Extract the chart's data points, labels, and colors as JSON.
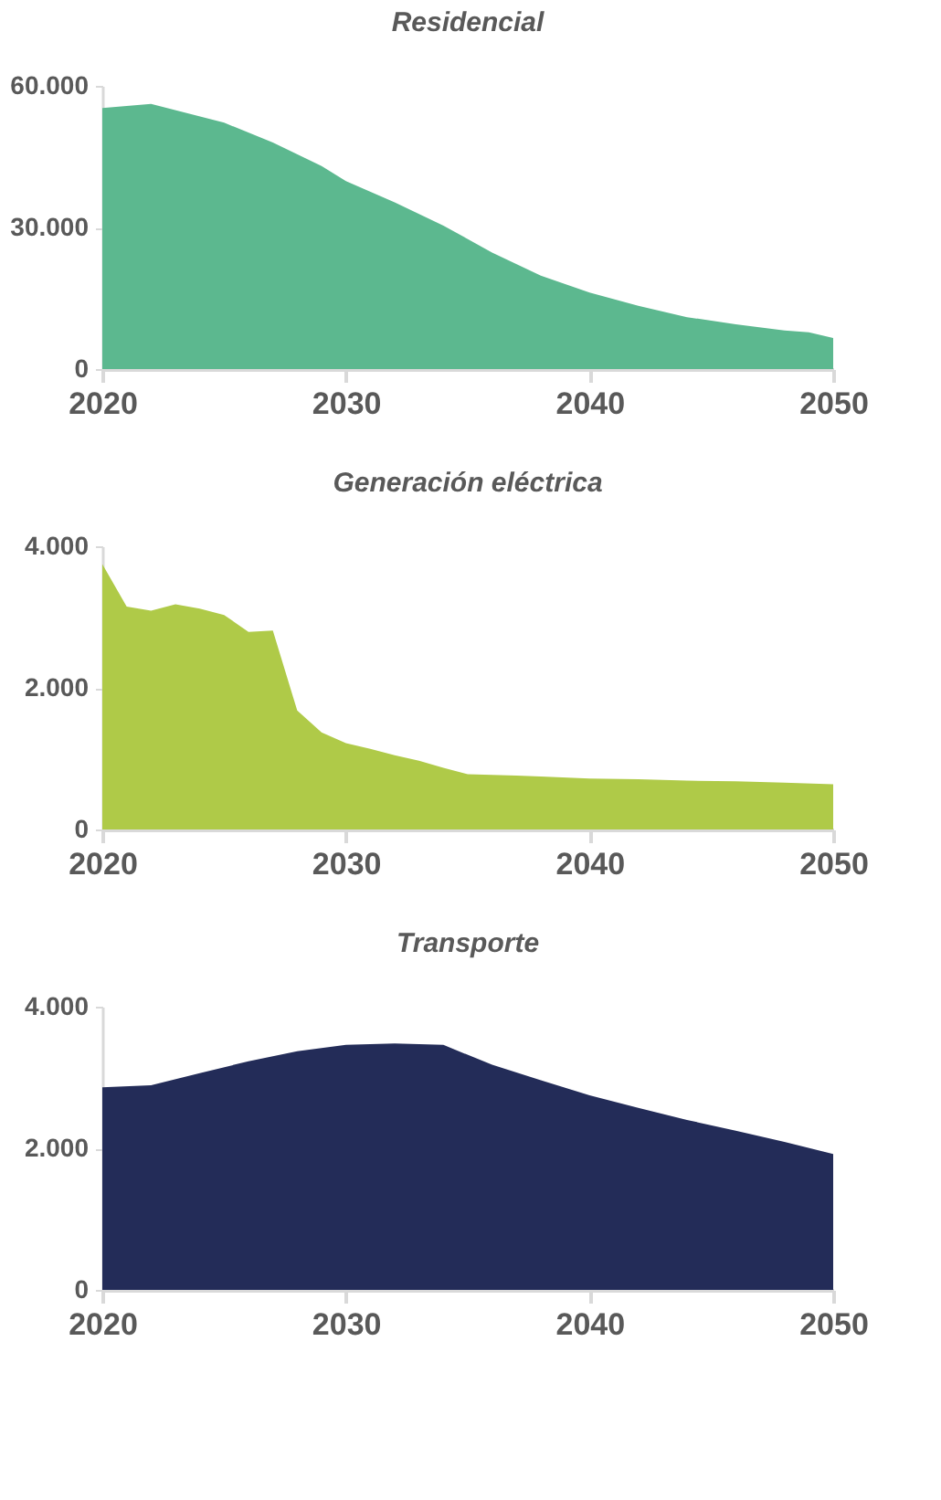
{
  "chart_data": [
    {
      "type": "area",
      "title": "Residencial",
      "x": [
        2020,
        2022,
        2025,
        2027,
        2029,
        2030,
        2032,
        2034,
        2036,
        2038,
        2040,
        2042,
        2044,
        2046,
        2048,
        2049,
        2050
      ],
      "series": [
        {
          "color": "#5cb88f",
          "values": [
            55300,
            56200,
            52200,
            48000,
            43000,
            39800,
            35300,
            30400,
            24700,
            19800,
            16200,
            13400,
            11000,
            9500,
            8200,
            7800,
            6600
          ]
        }
      ],
      "xlim": [
        2020,
        2050
      ],
      "xticks": [
        2020,
        2030,
        2040,
        2050
      ],
      "ylim": [
        0,
        60000
      ],
      "yticks": [
        {
          "value": 0,
          "label": "0"
        },
        {
          "value": 30000,
          "label": "30.000"
        },
        {
          "value": 60000,
          "label": "60.000"
        }
      ],
      "grid": false
    },
    {
      "type": "area",
      "title": "Generación eléctrica",
      "x": [
        2020,
        2021,
        2022,
        2023,
        2024,
        2025,
        2026,
        2027,
        2028,
        2029,
        2030,
        2031,
        2032,
        2033,
        2034,
        2035,
        2037,
        2038,
        2040,
        2042,
        2044,
        2046,
        2048,
        2050
      ],
      "series": [
        {
          "color": "#afca48",
          "values": [
            3750,
            3150,
            3090,
            3180,
            3120,
            3030,
            2790,
            2810,
            1680,
            1370,
            1220,
            1140,
            1050,
            970,
            870,
            780,
            760,
            750,
            720,
            710,
            690,
            680,
            660,
            640
          ]
        }
      ],
      "xlim": [
        2020,
        2050
      ],
      "xticks": [
        2020,
        2030,
        2040,
        2050
      ],
      "ylim": [
        0,
        4000
      ],
      "yticks": [
        {
          "value": 0,
          "label": "0"
        },
        {
          "value": 2000,
          "label": "2.000"
        },
        {
          "value": 4000,
          "label": "4.000"
        }
      ],
      "grid": false
    },
    {
      "type": "area",
      "title": "Transporte",
      "x": [
        2020,
        2022,
        2024,
        2026,
        2028,
        2030,
        2032,
        2034,
        2036,
        2038,
        2040,
        2042,
        2044,
        2046,
        2048,
        2050
      ],
      "series": [
        {
          "color": "#232c58",
          "values": [
            2860,
            2890,
            3060,
            3230,
            3370,
            3460,
            3480,
            3460,
            3180,
            2960,
            2750,
            2570,
            2400,
            2250,
            2090,
            1920
          ]
        }
      ],
      "xlim": [
        2020,
        2050
      ],
      "xticks": [
        2020,
        2030,
        2040,
        2050
      ],
      "ylim": [
        0,
        4000
      ],
      "yticks": [
        {
          "value": 0,
          "label": "0"
        },
        {
          "value": 2000,
          "label": "2.000"
        },
        {
          "value": 4000,
          "label": "4.000"
        }
      ],
      "grid": false
    }
  ]
}
